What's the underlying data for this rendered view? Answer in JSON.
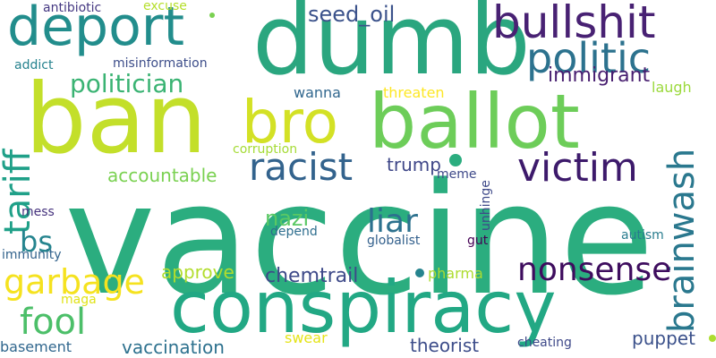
{
  "words": [
    {
      "text": "vaccine",
      "color": "#2bad7f",
      "rot": 0
    },
    {
      "text": "conspiracy",
      "color": "#22a884",
      "rot": 0
    },
    {
      "text": "ban",
      "color": "#c3df2a",
      "rot": 0
    },
    {
      "text": "dumb",
      "color": "#2aa67f",
      "rot": 0
    },
    {
      "text": "deport",
      "color": "#228d8c",
      "rot": 0
    },
    {
      "text": "ballot",
      "color": "#6dcd59",
      "rot": 0
    },
    {
      "text": "bro",
      "color": "#d3e125",
      "rot": 0
    },
    {
      "text": "bullshit",
      "color": "#482173",
      "rot": 0
    },
    {
      "text": "politic",
      "color": "#2c728e",
      "rot": 0
    },
    {
      "text": "victim",
      "color": "#3d1a6b",
      "rot": 0
    },
    {
      "text": "racist",
      "color": "#33638d",
      "rot": 0
    },
    {
      "text": "tariff",
      "color": "#1fa088",
      "rot": -90
    },
    {
      "text": "brainwash",
      "color": "#2a788e",
      "rot": -90
    },
    {
      "text": "nonsense",
      "color": "#3e0d5e",
      "rot": 0
    },
    {
      "text": "garbage",
      "color": "#f5e21f",
      "rot": 0
    },
    {
      "text": "fool",
      "color": "#4cbf69",
      "rot": 0
    },
    {
      "text": "liar",
      "color": "#2c718e",
      "rot": 0
    },
    {
      "text": "politician",
      "color": "#3ab373",
      "rot": 0
    },
    {
      "text": "bs",
      "color": "#25848e",
      "rot": 0
    },
    {
      "text": "seed_oil",
      "color": "#3b528b",
      "rot": 0
    },
    {
      "text": "immigrant",
      "color": "#481f70",
      "rot": 0
    },
    {
      "text": "nazi",
      "color": "#5ac864",
      "rot": 0
    },
    {
      "text": "chemtrail",
      "color": "#3e4a89",
      "rot": 0
    },
    {
      "text": "accountable",
      "color": "#7ad151",
      "rot": 0
    },
    {
      "text": "trump",
      "color": "#3f4788",
      "rot": 0
    },
    {
      "text": "approve",
      "color": "#b2dd2d",
      "rot": 0
    },
    {
      "text": "vaccination",
      "color": "#2d718e",
      "rot": 0
    },
    {
      "text": "theorist",
      "color": "#3d4d8a",
      "rot": 0
    },
    {
      "text": "puppet",
      "color": "#3b518b",
      "rot": 0
    },
    {
      "text": "maga",
      "color": "#e0e318",
      "rot": 0
    },
    {
      "text": "threaten",
      "color": "#fde725",
      "rot": 0
    },
    {
      "text": "laugh",
      "color": "#9bd93c",
      "rot": 0
    },
    {
      "text": "wanna",
      "color": "#31678e",
      "rot": 0
    },
    {
      "text": "antibiotic",
      "color": "#453882",
      "rot": 0
    },
    {
      "text": "excuse",
      "color": "#b5de2b",
      "rot": 0
    },
    {
      "text": "misinformation",
      "color": "#3d4e8a",
      "rot": 0
    },
    {
      "text": "addict",
      "color": "#26828e",
      "rot": 0
    },
    {
      "text": "corruption",
      "color": "#a5db36",
      "rot": 0
    },
    {
      "text": "unhinge",
      "color": "#3e4989",
      "rot": -90
    },
    {
      "text": "meme",
      "color": "#3e4989",
      "rot": 0
    },
    {
      "text": "depend",
      "color": "#2e6e8e",
      "rot": 0
    },
    {
      "text": "globalist",
      "color": "#34618d",
      "rot": 0
    },
    {
      "text": "gut",
      "color": "#440154",
      "rot": 0
    },
    {
      "text": "pharma",
      "color": "#addc30",
      "rot": 0
    },
    {
      "text": "autism",
      "color": "#287c8e",
      "rot": 0
    },
    {
      "text": "mess",
      "color": "#46337e",
      "rot": 0
    },
    {
      "text": "immunity",
      "color": "#33638d",
      "rot": 0
    },
    {
      "text": "swear",
      "color": "#e5e419",
      "rot": 0
    },
    {
      "text": "basement",
      "color": "#31678e",
      "rot": 0
    },
    {
      "text": "cheating",
      "color": "#3e4989",
      "rot": 0
    }
  ],
  "dots": [
    {
      "color": "#2bad7f"
    },
    {
      "color": "#7ad151"
    },
    {
      "color": "#25848e"
    },
    {
      "color": "#addc30"
    }
  ]
}
